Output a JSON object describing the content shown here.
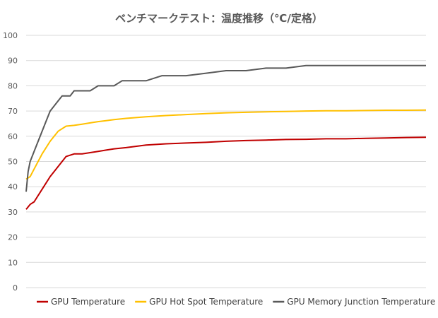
{
  "chart_data": {
    "type": "line",
    "title": "ベンチマークテスト：温度推移（℃/定格）",
    "xlabel": "",
    "ylabel": "",
    "ylim": [
      0,
      100
    ],
    "yticks": [
      0,
      10,
      20,
      30,
      40,
      50,
      60,
      70,
      80,
      90,
      100
    ],
    "xlim": [
      0,
      100
    ],
    "grid": true,
    "legend_position": "bottom",
    "series": [
      {
        "name": "GPU Temperature",
        "color": "#C00000",
        "x": [
          0,
          1,
          2,
          4,
          6,
          8,
          10,
          12,
          14,
          16,
          18,
          20,
          22,
          25,
          30,
          35,
          40,
          45,
          50,
          55,
          60,
          65,
          70,
          75,
          80,
          85,
          90,
          95,
          100
        ],
        "y": [
          31,
          33,
          34,
          39,
          44,
          48,
          52,
          53,
          53,
          53.5,
          54,
          54.5,
          55,
          55.5,
          56.5,
          57,
          57.3,
          57.6,
          58,
          58.3,
          58.5,
          58.7,
          58.8,
          59,
          59,
          59.2,
          59.3,
          59.5,
          59.6
        ]
      },
      {
        "name": "GPU Hot Spot Temperature",
        "color": "#FFC000",
        "x": [
          0,
          1,
          2,
          4,
          6,
          8,
          10,
          12,
          14,
          16,
          18,
          20,
          22,
          25,
          30,
          35,
          40,
          45,
          50,
          55,
          60,
          65,
          70,
          75,
          80,
          85,
          90,
          95,
          100
        ],
        "y": [
          43,
          44,
          47,
          53,
          58,
          62,
          64,
          64.3,
          64.8,
          65.3,
          65.8,
          66.2,
          66.6,
          67.1,
          67.7,
          68.2,
          68.6,
          69,
          69.3,
          69.5,
          69.7,
          69.8,
          70,
          70.1,
          70.1,
          70.2,
          70.3,
          70.3,
          70.4
        ]
      },
      {
        "name": "GPU Memory Junction Temperature",
        "color": "#595959",
        "x": [
          0,
          0.5,
          1,
          2,
          3,
          4,
          5,
          6,
          7,
          8,
          9,
          10,
          11,
          12,
          13,
          14,
          15,
          16,
          17,
          18,
          19,
          20,
          22,
          24,
          26,
          28,
          30,
          32,
          34,
          36,
          38,
          40,
          45,
          50,
          55,
          60,
          65,
          70,
          75,
          80,
          85,
          90,
          95,
          100
        ],
        "y": [
          38,
          46,
          50,
          54,
          58,
          62,
          66,
          70,
          72,
          74,
          76,
          76,
          76,
          78,
          78,
          78,
          78,
          78,
          79,
          80,
          80,
          80,
          80,
          82,
          82,
          82,
          82,
          83,
          84,
          84,
          84,
          84,
          85,
          86,
          86,
          87,
          87,
          88,
          88,
          88,
          88,
          88,
          88,
          88
        ]
      }
    ]
  }
}
